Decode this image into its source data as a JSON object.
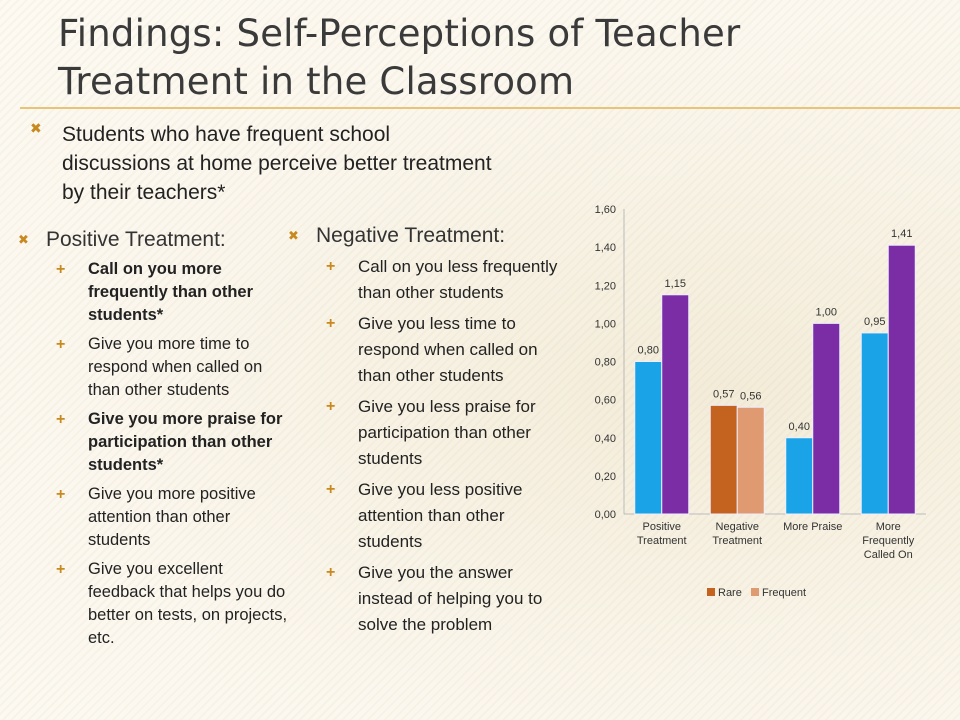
{
  "title": "Findings: Self-Perceptions of Teacher Treatment in the Classroom",
  "intro": "Students who have frequent school discussions at home perceive better treatment by their teachers*",
  "positive": {
    "heading": "Positive Treatment:",
    "items": [
      {
        "text": "Call on you more frequently than other students*",
        "bold": true
      },
      {
        "text": "Give you more time to respond when called on than other students",
        "bold": false
      },
      {
        "text": "Give you more praise for participation than other students*",
        "bold": true
      },
      {
        "text": "Give you more positive attention than other students",
        "bold": false
      },
      {
        "text": "Give you excellent feedback that helps you do better on tests, on projects, etc.",
        "bold": false
      }
    ]
  },
  "negative": {
    "heading": "Negative Treatment:",
    "items": [
      {
        "text": "Call on you less frequently than other students"
      },
      {
        "text": "Give you less time to respond when called on than other students"
      },
      {
        "text": "Give you less praise for participation than other students"
      },
      {
        "text": "Give you less positive attention than other students"
      },
      {
        "text": "Give you the answer instead of helping you to solve the problem"
      }
    ]
  },
  "chart_data": {
    "type": "bar",
    "categories": [
      "Positive Treatment",
      "Negative Treatment",
      "More Praise",
      "More Frequently Called On"
    ],
    "y_ticks": [
      "0,00",
      "0,20",
      "0,40",
      "0,60",
      "0,80",
      "1,00",
      "1,20",
      "1,40",
      "1,60"
    ],
    "ylim": [
      0,
      1.6
    ],
    "legend_position": "bottom",
    "series": [
      {
        "name": "Rare",
        "values": [
          0.8,
          0.57,
          0.4,
          0.95
        ],
        "labels": [
          "0,80",
          "0,57",
          "0,40",
          "0,95"
        ]
      },
      {
        "name": "Frequent",
        "values": [
          1.15,
          0.56,
          1.0,
          1.41
        ],
        "labels": [
          "1,15",
          "0,56",
          "1,00",
          "1,41"
        ]
      }
    ],
    "colors": {
      "rare": "#1aa3e6",
      "frequent": "#7a2da4",
      "neg_rare": "#c4621f",
      "neg_frequent": "#e09a72"
    },
    "legend_colors": {
      "rare": "#c4621f",
      "frequent": "#e09a72"
    }
  }
}
